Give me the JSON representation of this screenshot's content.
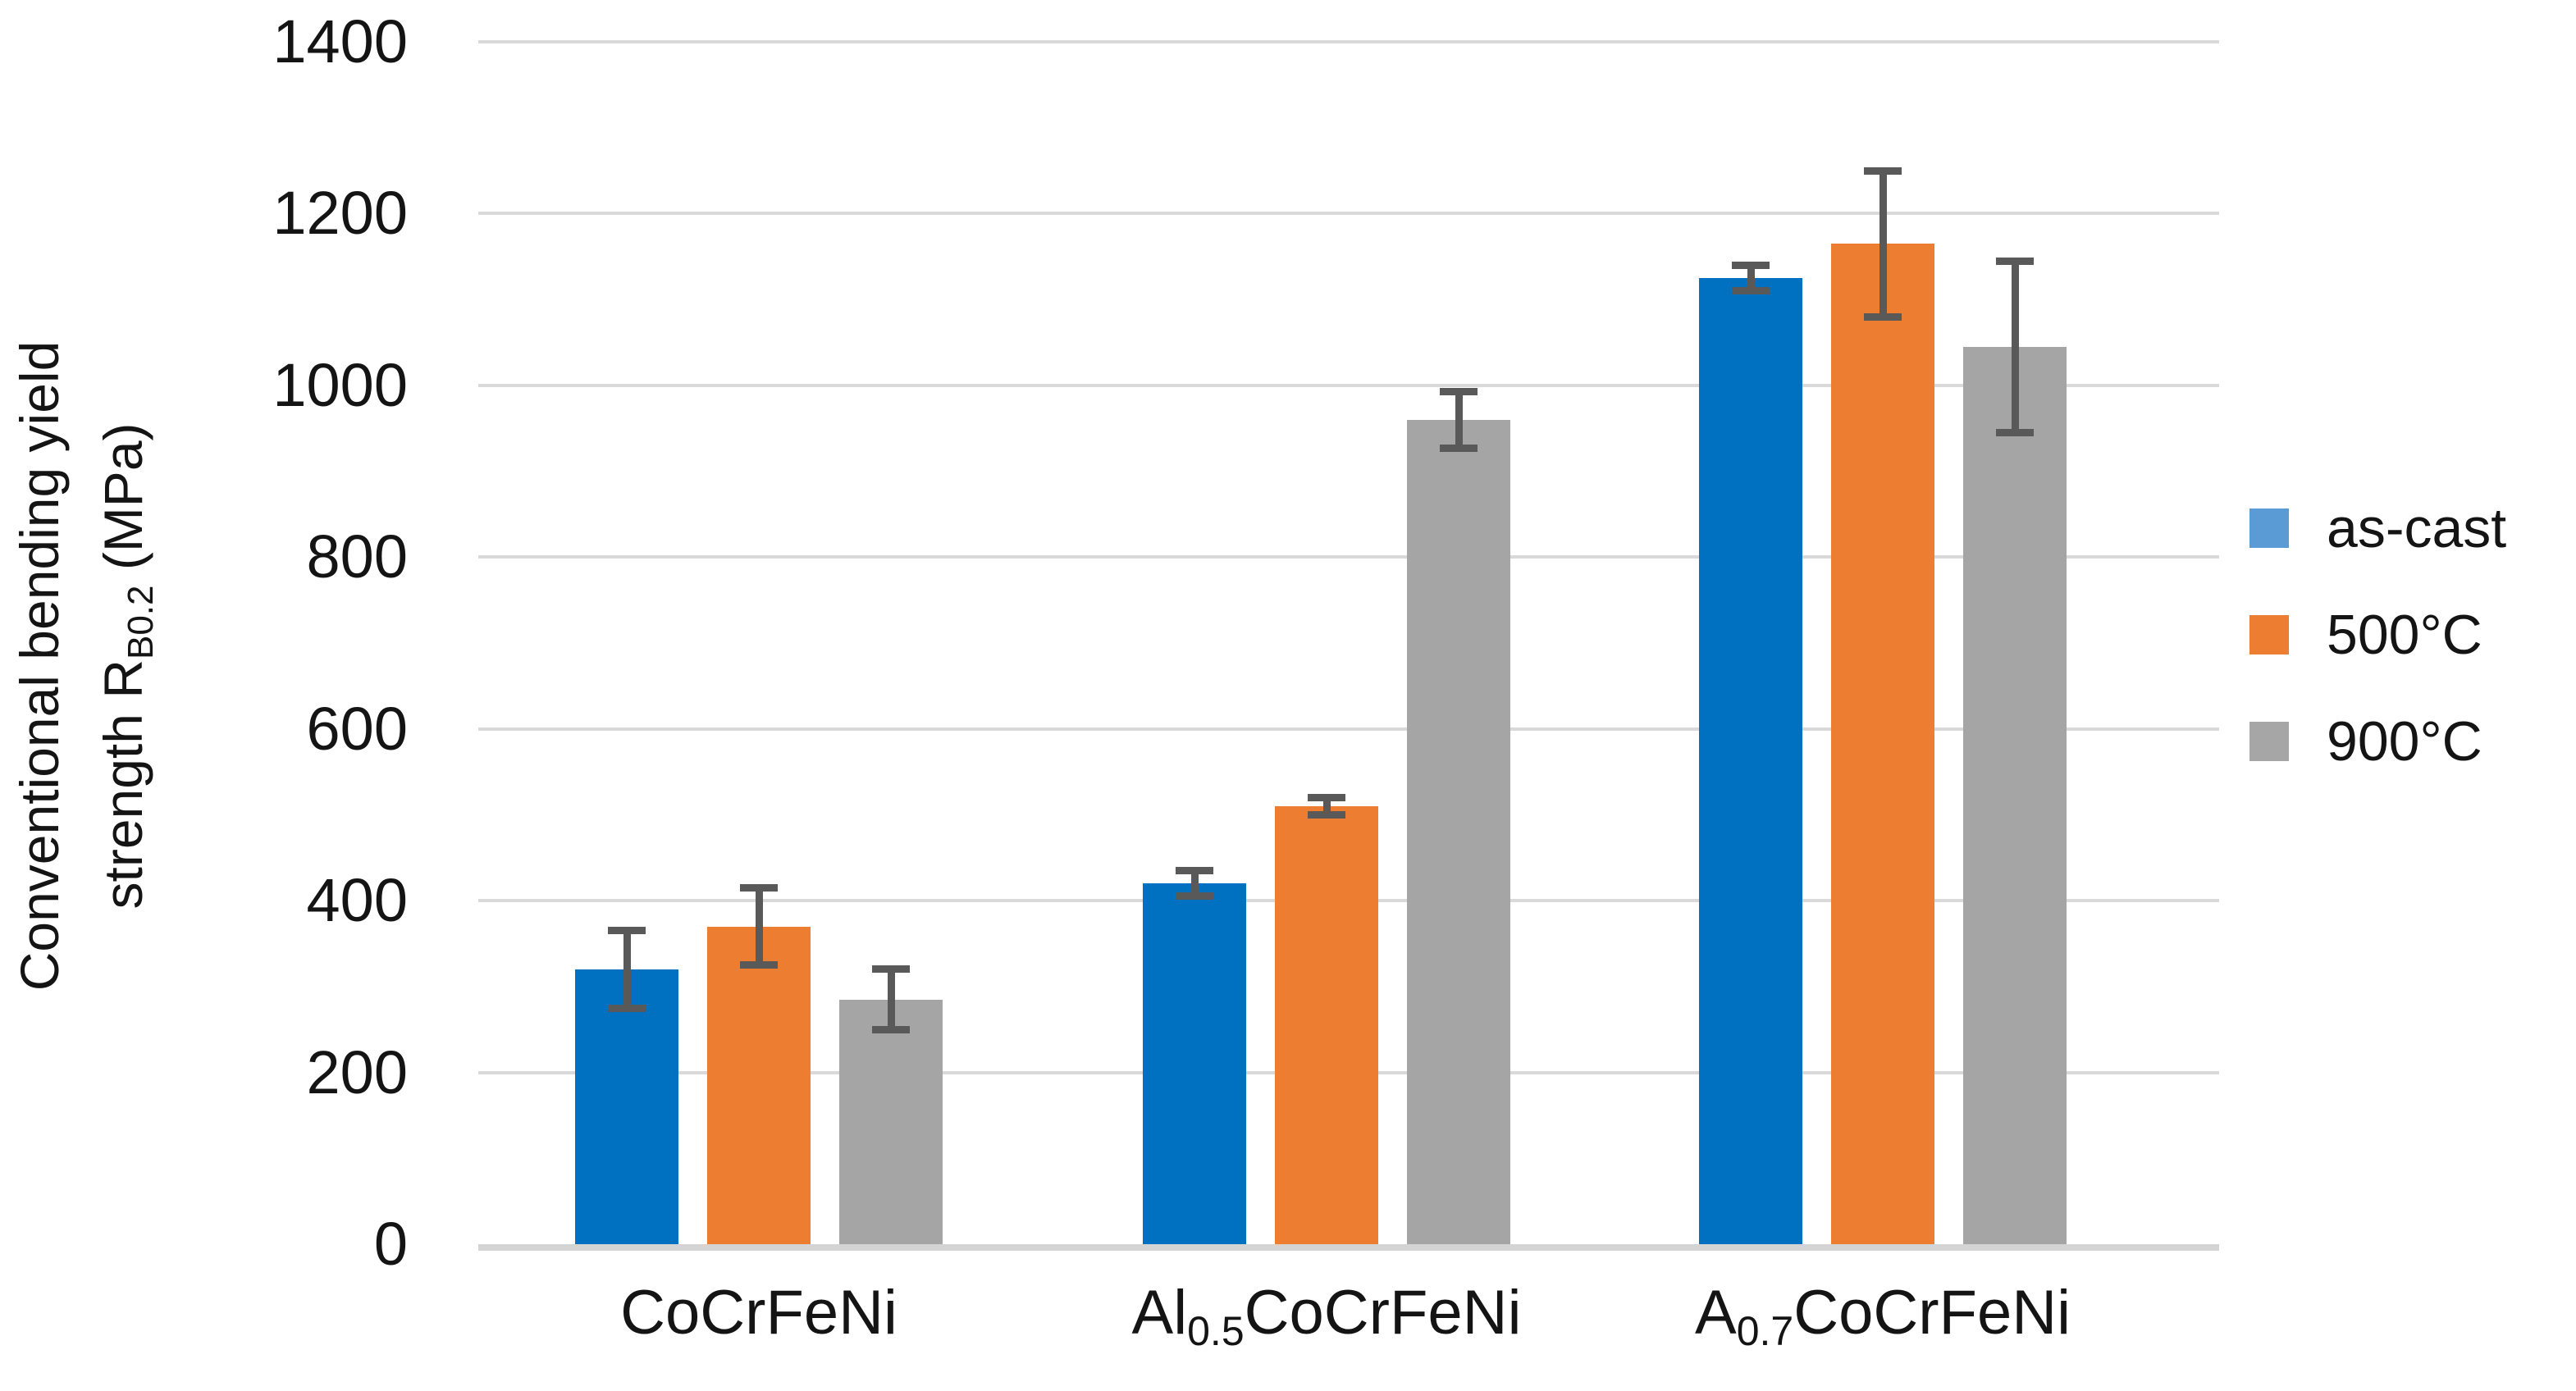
{
  "figure": {
    "background": "#FFFFFF",
    "grid_color": "#D9D9D9",
    "axis_line_color": "#D4D4D4",
    "error_bar_color": "#595959",
    "text_color": "#141414"
  },
  "y_axis": {
    "title_line1": "Conventional bending yield",
    "title_line2_pre": "strength R",
    "title_line2_sub": "B0.2",
    "title_line2_post": " (MPa)",
    "tick_labels": [
      "0",
      "200",
      "400",
      "600",
      "800",
      "1000",
      "1200",
      "1400"
    ]
  },
  "legend": {
    "position": "right",
    "items": [
      {
        "label": "as-cast",
        "color": "#5B9BD5"
      },
      {
        "label": "500°C",
        "color": "#ED7D31"
      },
      {
        "label": "900°C",
        "color": "#A6A6A6"
      }
    ]
  },
  "chart_data": {
    "type": "bar",
    "title": "",
    "xlabel": "",
    "ylabel": "Conventional bending yield strength R_B0.2 (MPa)",
    "ylim": [
      0,
      1400
    ],
    "ytick_step": 200,
    "grid": true,
    "legend_position": "right",
    "y_ticks": [
      "0",
      "200",
      "400",
      "600",
      "800",
      "1000",
      "1200",
      "1400"
    ],
    "categories": [
      "CoCrFeNi",
      "Al0.5CoCrFeNi",
      "A0.7CoCrFeNi"
    ],
    "categories_rich": [
      {
        "pre": "CoCrFeNi",
        "sub": "",
        "post": ""
      },
      {
        "pre": "Al",
        "sub": "0.5",
        "post": "CoCrFeNi"
      },
      {
        "pre": "A",
        "sub": "0.7",
        "post": "CoCrFeNi"
      }
    ],
    "series": [
      {
        "name": "as-cast",
        "color": "#0070C0",
        "values": [
          320,
          420,
          1125
        ],
        "errors": [
          45,
          15,
          15
        ]
      },
      {
        "name": "500°C",
        "color": "#ED7D31",
        "values": [
          370,
          510,
          1165
        ],
        "errors": [
          45,
          10,
          85
        ]
      },
      {
        "name": "900°C",
        "color": "#A5A5A5",
        "values": [
          285,
          960,
          1045
        ],
        "errors": [
          35,
          33,
          100
        ]
      }
    ],
    "error_bar_color": "#595959",
    "units": "MPa"
  }
}
